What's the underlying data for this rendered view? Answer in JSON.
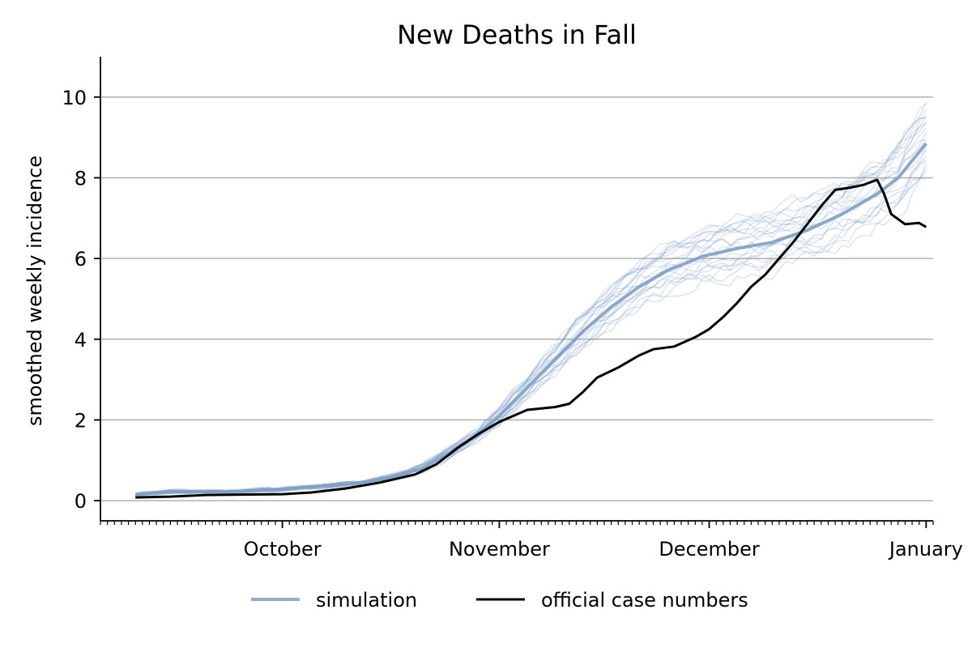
{
  "chart_data": {
    "type": "line",
    "title": "New Deaths in Fall",
    "xlabel": "",
    "ylabel": "smoothed weekly incidence",
    "x_unit": "date",
    "xlim": [
      "2020-09-05",
      "2021-01-02"
    ],
    "ylim": [
      -0.5,
      11.0
    ],
    "yticks": [
      0,
      2,
      4,
      6,
      8,
      10
    ],
    "xticks": [
      {
        "label": "October",
        "date": "2020-10-01"
      },
      {
        "label": "November",
        "date": "2020-11-01"
      },
      {
        "label": "December",
        "date": "2020-12-01"
      },
      {
        "label": "January",
        "date": "2021-01-01"
      }
    ],
    "grid": "y",
    "legend_position": "bottom-center",
    "colors": {
      "simulation": "#7f9ec4",
      "official": "#000000",
      "grid": "#b0b0b0"
    },
    "simulation_runs": 20,
    "series": [
      {
        "name": "simulation",
        "kind": "mean",
        "points": [
          [
            "2020-09-10",
            0.15
          ],
          [
            "2020-09-15",
            0.22
          ],
          [
            "2020-09-20",
            0.22
          ],
          [
            "2020-09-25",
            0.23
          ],
          [
            "2020-10-01",
            0.28
          ],
          [
            "2020-10-06",
            0.35
          ],
          [
            "2020-10-11",
            0.42
          ],
          [
            "2020-10-16",
            0.55
          ],
          [
            "2020-10-21",
            0.8
          ],
          [
            "2020-10-25",
            1.2
          ],
          [
            "2020-10-29",
            1.65
          ],
          [
            "2020-11-01",
            2.1
          ],
          [
            "2020-11-05",
            2.8
          ],
          [
            "2020-11-09",
            3.5
          ],
          [
            "2020-11-13",
            4.2
          ],
          [
            "2020-11-17",
            4.8
          ],
          [
            "2020-11-21",
            5.3
          ],
          [
            "2020-11-25",
            5.7
          ],
          [
            "2020-11-30",
            6.05
          ],
          [
            "2020-12-05",
            6.25
          ],
          [
            "2020-12-10",
            6.4
          ],
          [
            "2020-12-15",
            6.7
          ],
          [
            "2020-12-20",
            7.1
          ],
          [
            "2020-12-25",
            7.6
          ],
          [
            "2020-12-28",
            8.0
          ],
          [
            "2021-01-01",
            8.85
          ]
        ]
      },
      {
        "name": "official case numbers",
        "points": [
          [
            "2020-09-10",
            0.08
          ],
          [
            "2020-09-15",
            0.1
          ],
          [
            "2020-09-20",
            0.14
          ],
          [
            "2020-09-25",
            0.15
          ],
          [
            "2020-10-01",
            0.16
          ],
          [
            "2020-10-05",
            0.2
          ],
          [
            "2020-10-10",
            0.3
          ],
          [
            "2020-10-15",
            0.45
          ],
          [
            "2020-10-20",
            0.65
          ],
          [
            "2020-10-23",
            0.9
          ],
          [
            "2020-10-26",
            1.3
          ],
          [
            "2020-10-29",
            1.65
          ],
          [
            "2020-11-01",
            1.95
          ],
          [
            "2020-11-05",
            2.25
          ],
          [
            "2020-11-09",
            2.32
          ],
          [
            "2020-11-11",
            2.4
          ],
          [
            "2020-11-13",
            2.7
          ],
          [
            "2020-11-15",
            3.05
          ],
          [
            "2020-11-18",
            3.3
          ],
          [
            "2020-11-21",
            3.6
          ],
          [
            "2020-11-23",
            3.75
          ],
          [
            "2020-11-26",
            3.82
          ],
          [
            "2020-11-29",
            4.05
          ],
          [
            "2020-12-01",
            4.25
          ],
          [
            "2020-12-03",
            4.55
          ],
          [
            "2020-12-05",
            4.9
          ],
          [
            "2020-12-07",
            5.3
          ],
          [
            "2020-12-09",
            5.6
          ],
          [
            "2020-12-11",
            6.0
          ],
          [
            "2020-12-13",
            6.4
          ],
          [
            "2020-12-15",
            6.85
          ],
          [
            "2020-12-17",
            7.3
          ],
          [
            "2020-12-19",
            7.7
          ],
          [
            "2020-12-21",
            7.75
          ],
          [
            "2020-12-23",
            7.82
          ],
          [
            "2020-12-25",
            7.95
          ],
          [
            "2020-12-26",
            7.6
          ],
          [
            "2020-12-27",
            7.1
          ],
          [
            "2020-12-29",
            6.85
          ],
          [
            "2020-12-31",
            6.88
          ],
          [
            "2021-01-01",
            6.78
          ]
        ]
      }
    ],
    "legend": [
      {
        "label": "simulation",
        "series": "simulation"
      },
      {
        "label": "official case numbers",
        "series": "official case numbers"
      }
    ]
  }
}
